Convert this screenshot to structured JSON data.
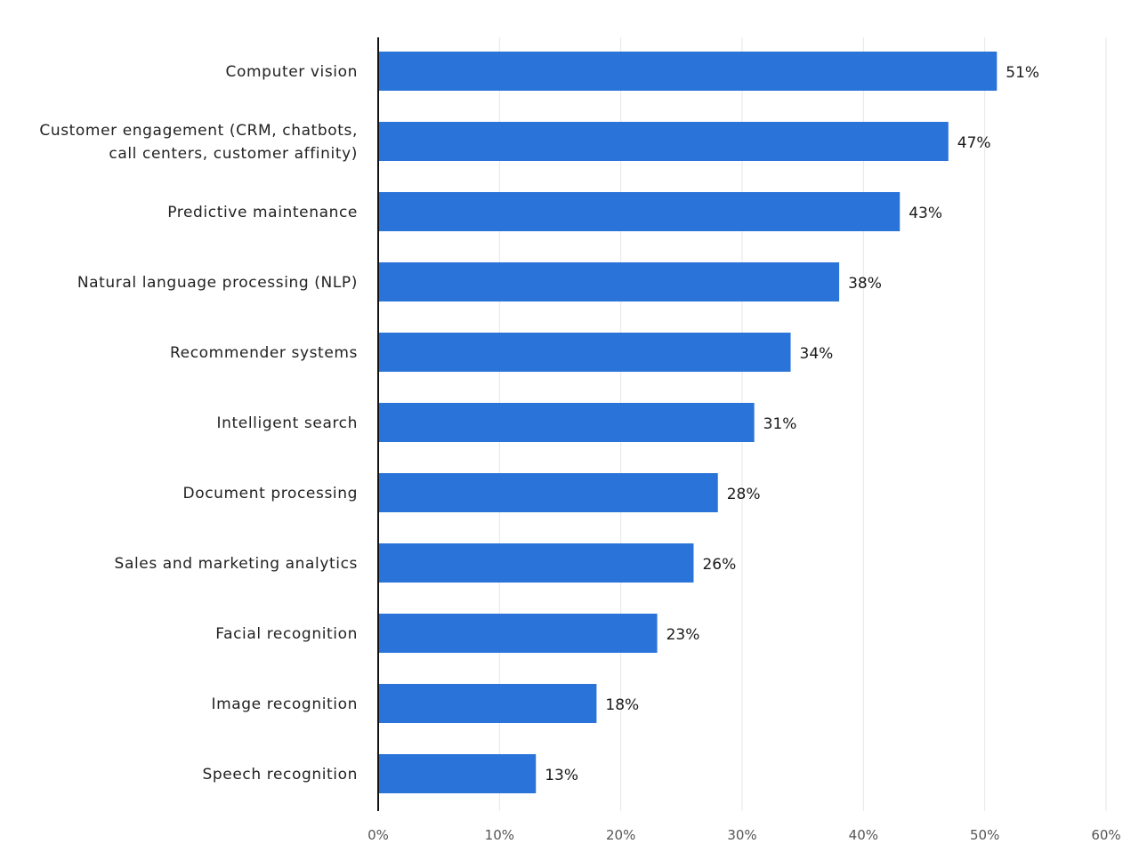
{
  "chart_data": {
    "type": "bar",
    "orientation": "horizontal",
    "categories": [
      "Computer vision",
      "Customer engagement (CRM, chatbots, call centers, customer affinity)",
      "Predictive maintenance",
      "Natural language processing (NLP)",
      "Recommender systems",
      "Intelligent search",
      "Document processing",
      "Sales and marketing analytics",
      "Facial recognition",
      "Image recognition",
      "Speech recognition"
    ],
    "category_lines": [
      [
        "Computer vision"
      ],
      [
        "Customer engagement (CRM, chatbots,",
        "call centers, customer affinity)"
      ],
      [
        "Predictive maintenance"
      ],
      [
        "Natural language processing (NLP)"
      ],
      [
        "Recommender systems"
      ],
      [
        "Intelligent search"
      ],
      [
        "Document processing"
      ],
      [
        "Sales and marketing analytics"
      ],
      [
        "Facial recognition"
      ],
      [
        "Image recognition"
      ],
      [
        "Speech recognition"
      ]
    ],
    "values": [
      51,
      47,
      43,
      38,
      34,
      31,
      28,
      26,
      23,
      18,
      13
    ],
    "value_labels": [
      "51%",
      "47%",
      "43%",
      "38%",
      "34%",
      "31%",
      "28%",
      "26%",
      "23%",
      "18%",
      "13%"
    ],
    "xlim": [
      0,
      60
    ],
    "x_ticks": [
      0,
      10,
      20,
      30,
      40,
      50,
      60
    ],
    "x_tick_labels": [
      "0%",
      "10%",
      "20%",
      "30%",
      "40%",
      "50%",
      "60%"
    ],
    "grid": true,
    "bar_color": "#2a73d9",
    "title": "",
    "xlabel": "",
    "ylabel": ""
  }
}
